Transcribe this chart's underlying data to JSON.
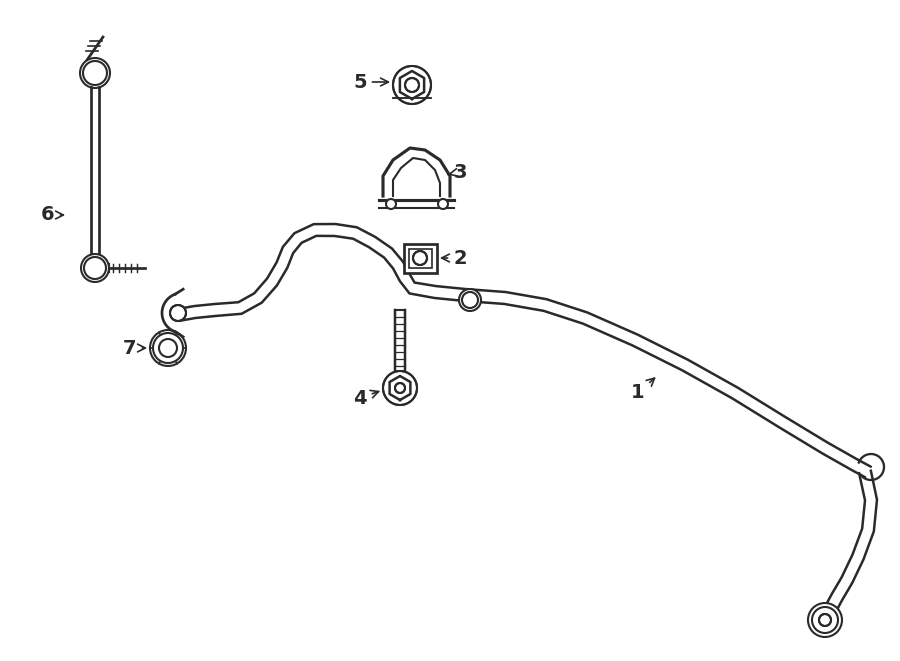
{
  "background_color": "#ffffff",
  "line_color": "#2a2a2a",
  "line_width": 1.5,
  "arrow_color": "#2a2a2a",
  "figsize": [
    9.0,
    6.61
  ],
  "dpi": 100
}
